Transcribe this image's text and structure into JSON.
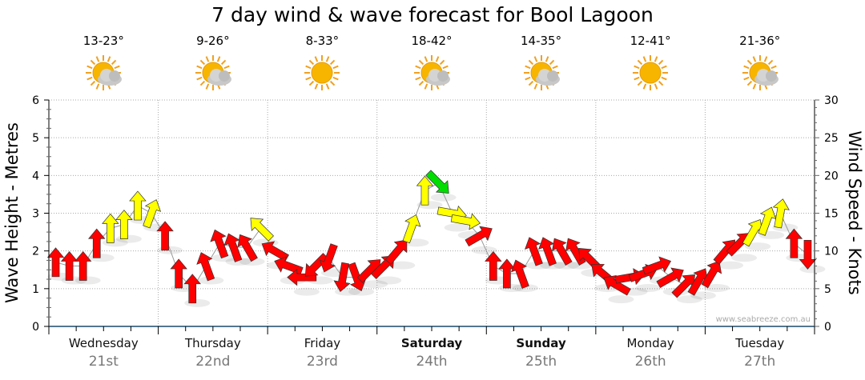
{
  "title": "7 day wind & wave forecast for Bool Lagoon",
  "days": [
    {
      "name": "Wednesday",
      "date": "21st",
      "temp": "13-23°",
      "icon": "partly-cloudy-icon",
      "weekend": false
    },
    {
      "name": "Thursday",
      "date": "22nd",
      "temp": "9-26°",
      "icon": "partly-cloudy-icon",
      "weekend": false
    },
    {
      "name": "Friday",
      "date": "23rd",
      "temp": "8-33°",
      "icon": "sunny-icon",
      "weekend": false
    },
    {
      "name": "Saturday",
      "date": "24th",
      "temp": "18-42°",
      "icon": "partly-cloudy-icon",
      "weekend": true
    },
    {
      "name": "Sunday",
      "date": "25th",
      "temp": "14-35°",
      "icon": "partly-cloudy-icon",
      "weekend": true
    },
    {
      "name": "Monday",
      "date": "26th",
      "temp": "12-41°",
      "icon": "sunny-icon",
      "weekend": false
    },
    {
      "name": "Tuesday",
      "date": "27th",
      "temp": "21-36°",
      "icon": "partly-cloudy-icon",
      "weekend": false
    }
  ],
  "watermark": "www.seabreeze.com.au",
  "colors": {
    "calm": "#ff0000",
    "moderate": "#ffff00",
    "strong": "#00dd00",
    "axis": "#1a4a6a"
  },
  "chart_data": {
    "type": "line",
    "title": "7 day wind & wave forecast for Bool Lagoon",
    "ylabel_left": "Wave Height - Metres",
    "ylabel_right": "Wind Speed - Knots",
    "ylim_left": [
      0,
      6
    ],
    "ylim_right": [
      0,
      30
    ],
    "yticks_left": [
      "0",
      "1",
      "2",
      "3",
      "4",
      "5",
      "6"
    ],
    "yticks_right": [
      "0",
      "5",
      "10",
      "15",
      "20",
      "25",
      "30"
    ],
    "grid": true,
    "interval_hours": 3,
    "series": [
      {
        "name": "Wind Speed (knots)",
        "values": [
          8.5,
          8,
          8,
          11,
          13,
          13.5,
          16,
          15,
          12,
          7,
          5,
          8,
          11,
          10.5,
          10.5,
          13,
          10,
          8,
          6.5,
          8,
          9,
          6.5,
          6.5,
          7.5,
          8,
          10,
          13,
          18,
          19,
          15,
          14,
          12,
          8,
          7,
          7,
          10,
          10,
          10,
          10,
          9,
          7,
          5.5,
          6.5,
          7,
          8,
          6.5,
          5.5,
          6,
          7,
          10,
          11,
          12.5,
          14,
          15,
          11,
          9.5
        ],
        "arrow_direction_deg": [
          0,
          0,
          0,
          0,
          0,
          0,
          0,
          20,
          0,
          0,
          0,
          -20,
          -20,
          -20,
          -30,
          -45,
          -60,
          -70,
          -90,
          225,
          200,
          190,
          160,
          45,
          45,
          40,
          20,
          0,
          135,
          100,
          100,
          60,
          0,
          0,
          -20,
          -20,
          -20,
          -30,
          -30,
          -45,
          -50,
          -60,
          80,
          70,
          70,
          60,
          45,
          30,
          30,
          40,
          45,
          30,
          20,
          10,
          0,
          180
        ]
      }
    ]
  }
}
